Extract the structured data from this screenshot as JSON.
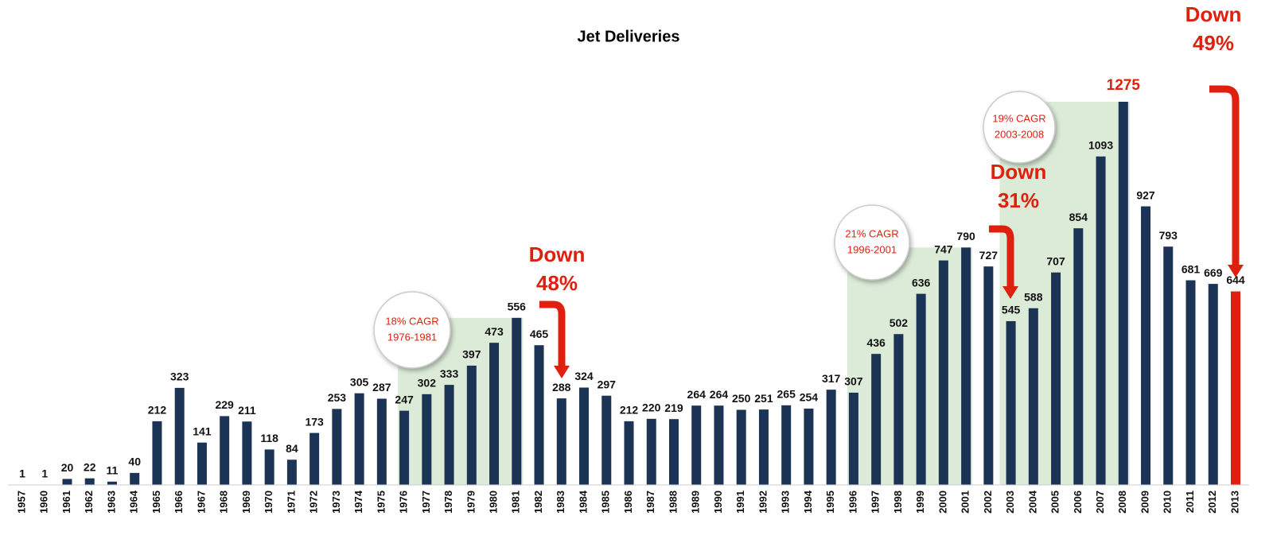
{
  "chart_data": {
    "type": "bar",
    "title": "Jet Deliveries",
    "categories": [
      "1957",
      "1960",
      "1961",
      "1962",
      "1963",
      "1964",
      "1965",
      "1966",
      "1967",
      "1968",
      "1969",
      "1970",
      "1971",
      "1972",
      "1973",
      "1974",
      "1975",
      "1976",
      "1977",
      "1978",
      "1979",
      "1980",
      "1981",
      "1982",
      "1983",
      "1984",
      "1985",
      "1986",
      "1987",
      "1988",
      "1989",
      "1990",
      "1991",
      "1992",
      "1993",
      "1994",
      "1995",
      "1996",
      "1997",
      "1998",
      "1999",
      "2000",
      "2001",
      "2002",
      "2003",
      "2004",
      "2005",
      "2006",
      "2007",
      "2008",
      "2009",
      "2010",
      "2011",
      "2012",
      "2013"
    ],
    "values": [
      1,
      1,
      20,
      22,
      11,
      40,
      212,
      323,
      141,
      229,
      211,
      118,
      84,
      173,
      253,
      305,
      287,
      247,
      302,
      333,
      397,
      473,
      556,
      465,
      288,
      324,
      297,
      212,
      220,
      219,
      264,
      264,
      250,
      251,
      265,
      254,
      317,
      307,
      436,
      502,
      636,
      747,
      790,
      727,
      545,
      588,
      707,
      854,
      1093,
      1275,
      927,
      793,
      681,
      669,
      644
    ],
    "color": "#1b3354",
    "last_bar_color": "#e0200f",
    "annotation_color": "#e0200f",
    "region_color": "#dcebd8",
    "cagr_notes": [
      [
        "18% CAGR",
        "1976-1981"
      ],
      [
        "21% CAGR",
        "1996-2001"
      ],
      [
        "19% CAGR",
        "2003-2008"
      ]
    ],
    "declines": [
      [
        "Down",
        "48%"
      ],
      [
        "Down",
        "31%"
      ],
      [
        "Down",
        "49%"
      ]
    ]
  }
}
